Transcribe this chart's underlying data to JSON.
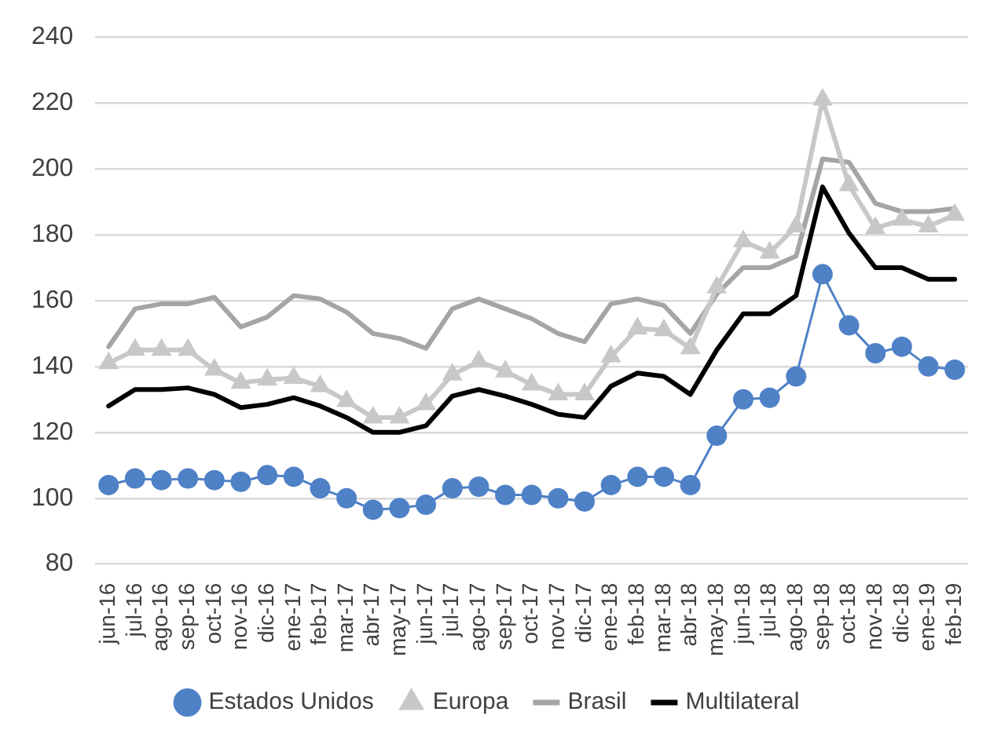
{
  "chart_data": {
    "type": "line",
    "categories": [
      "jun-16",
      "jul-16",
      "ago-16",
      "sep-16",
      "oct-16",
      "nov-16",
      "dic-16",
      "ene-17",
      "feb-17",
      "mar-17",
      "abr-17",
      "may-17",
      "jun-17",
      "jul-17",
      "ago-17",
      "sep-17",
      "oct-17",
      "nov-17",
      "dic-17",
      "ene-18",
      "feb-18",
      "mar-18",
      "abr-18",
      "may-18",
      "jun-18",
      "jul-18",
      "ago-18",
      "sep-18",
      "oct-18",
      "nov-18",
      "dic-18",
      "ene-19",
      "feb-19"
    ],
    "series": [
      {
        "name": "Estados Unidos",
        "color": "#4f81c7",
        "marker": "circle",
        "values": [
          104,
          106,
          105.5,
          106,
          105.5,
          105,
          107,
          106.5,
          103,
          100,
          96.5,
          97,
          98,
          103,
          103.5,
          101,
          101,
          100,
          99,
          104,
          106.5,
          106.5,
          104,
          119,
          130,
          130.5,
          137,
          168,
          152.5,
          144,
          146,
          140,
          139
        ]
      },
      {
        "name": "Europa",
        "color": "#c8c8c8",
        "marker": "triangle",
        "values": [
          141,
          145,
          145,
          145,
          139,
          135,
          136,
          136.5,
          134,
          129.5,
          124.5,
          124.5,
          128.5,
          137.5,
          141.5,
          138.5,
          134.5,
          131.5,
          131.5,
          143,
          151.5,
          151,
          145.5,
          164,
          178,
          174.5,
          182.5,
          221,
          195,
          182,
          184.5,
          182.5,
          186
        ]
      },
      {
        "name": "Brasil",
        "color": "#a5a5a5",
        "marker": "none",
        "values": [
          146,
          157.5,
          159,
          159,
          161,
          152,
          155,
          161.5,
          160.5,
          156.5,
          150,
          148.5,
          145.5,
          157.5,
          160.5,
          157.5,
          154.5,
          150,
          147.5,
          159,
          160.5,
          158.5,
          150,
          162,
          170,
          170,
          173.5,
          203,
          202,
          189.5,
          187,
          187,
          188
        ]
      },
      {
        "name": "Multilateral",
        "color": "#000000",
        "marker": "none",
        "values": [
          128,
          133,
          133,
          133.5,
          131.5,
          127.5,
          128.5,
          130.5,
          128,
          124.5,
          120,
          120,
          122,
          131,
          133,
          131,
          128.5,
          125.5,
          124.5,
          134,
          138,
          137,
          131.5,
          145,
          156,
          156,
          161.5,
          194.5,
          180.5,
          170,
          170,
          166.5,
          166.5
        ]
      }
    ],
    "ylim": [
      80,
      240
    ],
    "yticks": [
      80,
      100,
      120,
      140,
      160,
      180,
      200,
      220,
      240
    ],
    "grid": "y",
    "legend": "bottom"
  }
}
